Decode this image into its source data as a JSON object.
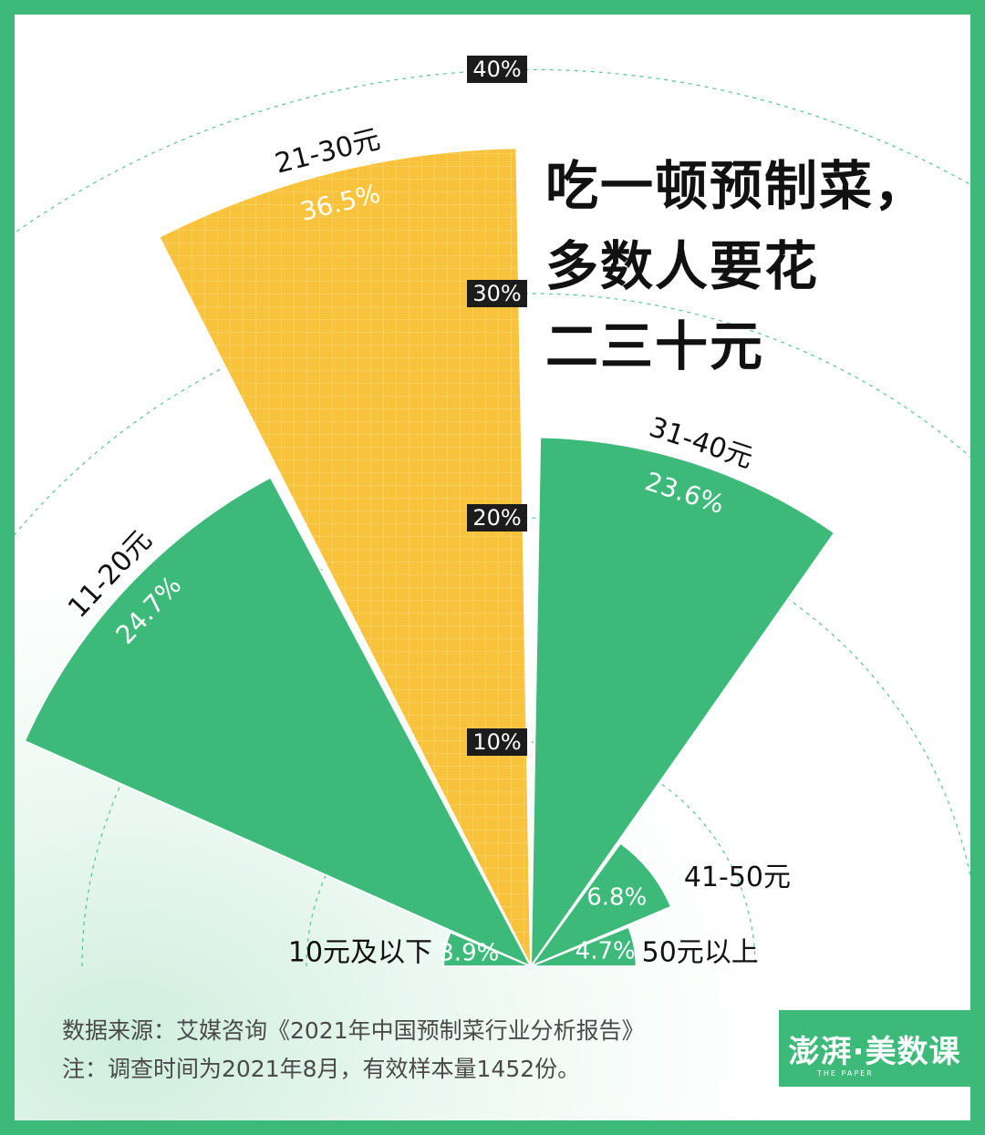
{
  "title": {
    "line1": "吃一顿预制菜，",
    "line2": "多数人要花",
    "line3": "二三十元"
  },
  "source": {
    "line1": "数据来源：艾媒咨询《2021年中国预制菜行业分析报告》",
    "line2": "注：调查时间为2021年8月，有效样本量1452份。"
  },
  "logo": {
    "text": "澎湃·美数课",
    "sub": "THE PAPER"
  },
  "colors": {
    "accent": "#f8c33a",
    "green": "#3dba7a",
    "frame": "#3dba7a"
  },
  "chart_data": {
    "type": "polar-bar",
    "categories": [
      "10元及以下",
      "11-20元",
      "21-30元",
      "31-40元",
      "41-50元",
      "50元以上"
    ],
    "values": [
      3.9,
      24.7,
      36.5,
      23.6,
      6.8,
      4.7
    ],
    "value_labels": [
      "3.9%",
      "24.7%",
      "36.5%",
      "23.6%",
      "6.8%",
      "4.7%"
    ],
    "highlight": "21-30元",
    "rings": [
      10,
      20,
      30,
      40
    ],
    "ring_labels": [
      "10%",
      "20%",
      "30%",
      "40%"
    ],
    "rmax": 40
  }
}
